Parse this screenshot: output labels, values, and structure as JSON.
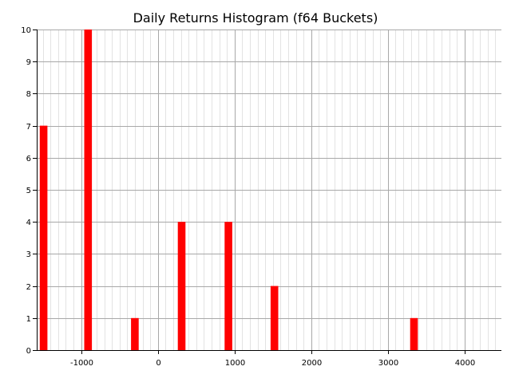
{
  "chart_data": {
    "type": "bar",
    "title": "Daily Returns Histogram (f64 Buckets)",
    "xlabel": "",
    "ylabel": "",
    "xlim": [
      -1580,
      4480
    ],
    "ylim": [
      0,
      10
    ],
    "x_ticks": [
      -1000,
      0,
      1000,
      2000,
      3000,
      4000
    ],
    "x_tick_labels": [
      "-1000",
      "0",
      "1000",
      "2000",
      "3000",
      "4000"
    ],
    "y_ticks": [
      0,
      1,
      2,
      3,
      4,
      5,
      6,
      7,
      8,
      9,
      10
    ],
    "y_tick_labels": [
      "0",
      "1",
      "2",
      "3",
      "4",
      "5",
      "6",
      "7",
      "8",
      "9",
      "10"
    ],
    "grid": true,
    "bar_width": 100,
    "bar_color": "#ff0000",
    "bars": [
      {
        "x": -1540,
        "value": 7
      },
      {
        "x": -960,
        "value": 10
      },
      {
        "x": -350,
        "value": 1
      },
      {
        "x": 260,
        "value": 4
      },
      {
        "x": 870,
        "value": 4
      },
      {
        "x": 1470,
        "value": 2
      },
      {
        "x": 3290,
        "value": 1
      }
    ]
  }
}
